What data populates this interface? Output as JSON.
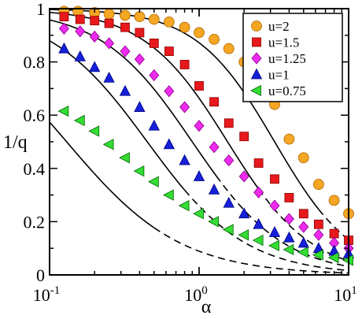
{
  "chart_data": {
    "type": "scatter",
    "xlabel": "α",
    "ylabel": "1/q",
    "xscale": "log",
    "xlim": [
      0.1,
      10
    ],
    "ylim": [
      0,
      1
    ],
    "x_ticks": [
      {
        "value": 0.1,
        "base": "10",
        "exp": "-1"
      },
      {
        "value": 1,
        "base": "10",
        "exp": "0"
      },
      {
        "value": 10,
        "base": "10",
        "exp": "1"
      }
    ],
    "y_ticks": [
      "0",
      "0.2",
      "0.4",
      "0.6",
      "0.8",
      "1"
    ],
    "grid": false,
    "legend_position": "top-right",
    "series": [
      {
        "name": "u=2",
        "marker": "circle",
        "color": "#f5a623",
        "stroke": "#b06a00",
        "x": [
          0.125,
          0.155,
          0.2,
          0.25,
          0.32,
          0.4,
          0.5,
          0.63,
          0.8,
          1.0,
          1.26,
          1.58,
          2.0,
          2.5,
          3.2,
          4.0,
          5.0,
          6.3,
          8.0,
          10.0
        ],
        "y": [
          0.99,
          0.99,
          0.985,
          0.98,
          0.975,
          0.97,
          0.96,
          0.95,
          0.93,
          0.91,
          0.885,
          0.85,
          0.8,
          0.72,
          0.64,
          0.51,
          0.44,
          0.34,
          0.28,
          0.23
        ]
      },
      {
        "name": "u=1.5",
        "marker": "square",
        "color": "#e8191c",
        "stroke": "#8b0000",
        "x": [
          0.125,
          0.16,
          0.2,
          0.25,
          0.32,
          0.4,
          0.5,
          0.63,
          0.8,
          1.0,
          1.26,
          1.58,
          2.0,
          2.5,
          3.2,
          4.0,
          5.0,
          6.3,
          8.0,
          10.0
        ],
        "y": [
          0.97,
          0.96,
          0.955,
          0.945,
          0.93,
          0.91,
          0.87,
          0.84,
          0.79,
          0.71,
          0.65,
          0.57,
          0.52,
          0.42,
          0.36,
          0.29,
          0.23,
          0.19,
          0.155,
          0.13
        ]
      },
      {
        "name": "u=1.25",
        "marker": "diamond",
        "color": "#ee2aee",
        "stroke": "#8b008b",
        "x": [
          0.125,
          0.16,
          0.2,
          0.25,
          0.32,
          0.4,
          0.5,
          0.63,
          0.8,
          1.0,
          1.26,
          1.58,
          2.0,
          2.5,
          3.2,
          4.0,
          5.0,
          6.3,
          8.0,
          10.0
        ],
        "y": [
          0.925,
          0.915,
          0.895,
          0.87,
          0.84,
          0.81,
          0.75,
          0.69,
          0.63,
          0.56,
          0.48,
          0.43,
          0.37,
          0.31,
          0.26,
          0.21,
          0.18,
          0.15,
          0.12,
          0.1
        ]
      },
      {
        "name": "u=1",
        "marker": "triangle-up",
        "color": "#1520d8",
        "stroke": "#000080",
        "x": [
          0.125,
          0.16,
          0.2,
          0.25,
          0.32,
          0.4,
          0.5,
          0.63,
          0.8,
          1.0,
          1.26,
          1.58,
          2.0,
          2.5,
          3.2,
          4.0,
          5.0,
          6.3,
          8.0,
          10.0
        ],
        "y": [
          0.85,
          0.82,
          0.78,
          0.74,
          0.69,
          0.63,
          0.56,
          0.49,
          0.43,
          0.37,
          0.32,
          0.27,
          0.23,
          0.19,
          0.16,
          0.14,
          0.12,
          0.1,
          0.09,
          0.08
        ]
      },
      {
        "name": "u=0.75",
        "marker": "triangle-left",
        "color": "#33dd33",
        "stroke": "#006400",
        "x": [
          0.125,
          0.16,
          0.2,
          0.25,
          0.32,
          0.4,
          0.5,
          0.63,
          0.8,
          1.0,
          1.26,
          1.58,
          2.0,
          2.5,
          3.2,
          4.0,
          5.0,
          6.3,
          8.0,
          10.0
        ],
        "y": [
          0.615,
          0.58,
          0.54,
          0.49,
          0.44,
          0.39,
          0.35,
          0.3,
          0.26,
          0.23,
          0.2,
          0.17,
          0.15,
          0.13,
          0.11,
          0.095,
          0.085,
          0.075,
          0.065,
          0.055
        ]
      }
    ],
    "theory_curves": [
      {
        "for": "u=2",
        "alpha0": 3.2,
        "n": 1.65,
        "solid_until": 6.3
      },
      {
        "for": "u=1.5",
        "alpha0": 1.55,
        "n": 1.55,
        "solid_until": 2.5
      },
      {
        "for": "u=1.25",
        "alpha0": 0.9,
        "n": 1.42,
        "solid_until": 1.3
      },
      {
        "for": "u=1",
        "alpha0": 0.45,
        "n": 1.32,
        "solid_until": 0.8
      },
      {
        "for": "u=0.75",
        "alpha0": 0.13,
        "n": 1.14,
        "solid_until": 0.5
      }
    ]
  }
}
